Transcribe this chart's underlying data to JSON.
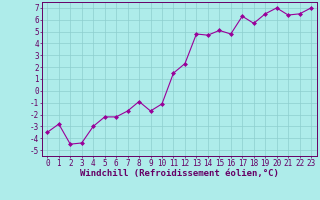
{
  "x": [
    0,
    1,
    2,
    3,
    4,
    5,
    6,
    7,
    8,
    9,
    10,
    11,
    12,
    13,
    14,
    15,
    16,
    17,
    18,
    19,
    20,
    21,
    22,
    23
  ],
  "y": [
    -3.5,
    -2.8,
    -4.5,
    -4.4,
    -3.0,
    -2.2,
    -2.2,
    -1.7,
    -0.9,
    -1.7,
    -1.1,
    1.5,
    2.3,
    4.8,
    4.7,
    5.1,
    4.8,
    6.3,
    5.7,
    6.5,
    7.0,
    6.4,
    6.5,
    7.0
  ],
  "line_color": "#990099",
  "marker_color": "#990099",
  "bg_color": "#aeecea",
  "grid_color": "#8ecece",
  "xlabel": "Windchill (Refroidissement éolien,°C)",
  "xlim": [
    -0.5,
    23.5
  ],
  "ylim": [
    -5.5,
    7.5
  ],
  "yticks": [
    -5,
    -4,
    -3,
    -2,
    -1,
    0,
    1,
    2,
    3,
    4,
    5,
    6,
    7
  ],
  "xticks": [
    0,
    1,
    2,
    3,
    4,
    5,
    6,
    7,
    8,
    9,
    10,
    11,
    12,
    13,
    14,
    15,
    16,
    17,
    18,
    19,
    20,
    21,
    22,
    23
  ],
  "tick_fontsize": 5.5,
  "label_fontsize": 6.5
}
